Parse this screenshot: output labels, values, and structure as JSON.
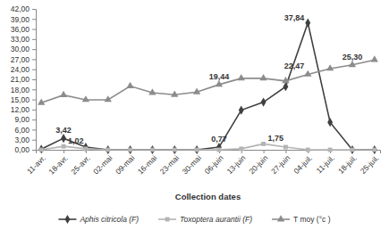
{
  "chart_data": {
    "type": "line",
    "x_label": "Collection dates",
    "categories": [
      "11-avr.",
      "18-avr.",
      "25-avr.",
      "02-mai",
      "09-mai",
      "16-mai",
      "23-mai",
      "30-mai",
      "06-juin",
      "13-juin",
      "20-juin",
      "27-juin",
      "04-juil.",
      "11-juil.",
      "18-juil.",
      "25-juil."
    ],
    "series": [
      {
        "name": "Aphis citricola (F)",
        "color": "#404040",
        "marker": "diamond",
        "values": [
          0.2,
          3.42,
          0.8,
          0,
          0,
          0,
          0,
          0,
          0.77,
          11.8,
          14.2,
          18.8,
          37.84,
          8.2,
          0,
          0
        ],
        "value_labels": [
          null,
          "3,42",
          null,
          null,
          null,
          null,
          null,
          null,
          "0,77",
          null,
          null,
          null,
          "37,84",
          null,
          null,
          null
        ]
      },
      {
        "name": "Toxoptera aurantii (F)",
        "color": "#b4b4b4",
        "marker": "square",
        "values": [
          0,
          1.02,
          0.3,
          0,
          0,
          0,
          0,
          0,
          0,
          0.3,
          1.75,
          0.8,
          0,
          0,
          0,
          0
        ],
        "value_labels": [
          null,
          "1,02",
          null,
          null,
          null,
          null,
          null,
          null,
          null,
          null,
          "1,75",
          null,
          null,
          null,
          null,
          null
        ]
      },
      {
        "name": "T moy (°c )",
        "color": "#8c8c8c",
        "marker": "triangle",
        "values": [
          14.0,
          16.3,
          14.9,
          14.9,
          19.0,
          17.0,
          16.4,
          17.2,
          19.44,
          21.3,
          21.3,
          20.5,
          22.47,
          24.2,
          25.3,
          26.8
        ],
        "value_labels": [
          null,
          null,
          null,
          null,
          null,
          null,
          null,
          null,
          "19,44",
          null,
          null,
          null,
          "22,47",
          null,
          "25,30",
          null
        ]
      }
    ],
    "ylim": [
      0,
      42
    ],
    "yticks": [
      {
        "value": 0,
        "label": "0,00"
      },
      {
        "value": 3,
        "label": "3,00"
      },
      {
        "value": 6,
        "label": "6,00"
      },
      {
        "value": 9,
        "label": "9,00"
      },
      {
        "value": 12,
        "label": "12,00"
      },
      {
        "value": 15,
        "label": "15,00"
      },
      {
        "value": 18,
        "label": "18,00"
      },
      {
        "value": 21,
        "label": "21,00"
      },
      {
        "value": 24,
        "label": "24,00"
      },
      {
        "value": 27,
        "label": "27,00"
      },
      {
        "value": 30,
        "label": "30,00"
      },
      {
        "value": 33,
        "label": "33,00"
      },
      {
        "value": 36,
        "label": "36,00"
      },
      {
        "value": 39,
        "label": "39,00"
      },
      {
        "value": 42,
        "label": "42,00"
      }
    ],
    "grid": false,
    "data_labels": true,
    "legend": "bottom"
  }
}
